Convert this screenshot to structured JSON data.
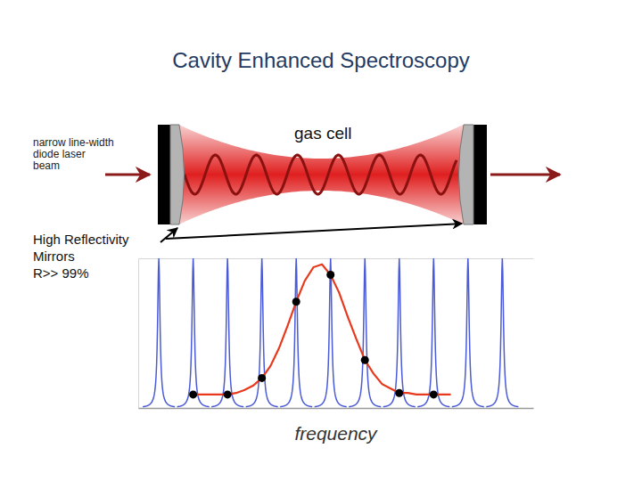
{
  "title": "Cavity Enhanced Spectroscopy",
  "laser_label": [
    "narrow line-width",
    "diode laser",
    "beam"
  ],
  "cell_label": "gas cell",
  "mirror_label": [
    "High Reflectivity",
    "Mirrors",
    "R>> 99%"
  ],
  "chart_data": {
    "type": "line",
    "x_label": "frequency",
    "xlim": [
      0.4,
      11.9
    ],
    "ylim": [
      0,
      1
    ],
    "tick_labels": false,
    "series": [
      {
        "type": "peak",
        "color": "#4b5bd8",
        "x": [
          1,
          2,
          3,
          4,
          5,
          6,
          7,
          8,
          9,
          10,
          11
        ],
        "values": [
          1,
          1,
          1,
          1,
          1,
          1,
          1,
          1,
          1,
          1,
          1
        ]
      },
      {
        "type": "line",
        "color": "#e8391d",
        "x": [
          2,
          2.25,
          2.5,
          2.75,
          3,
          3.25,
          3.5,
          3.75,
          4,
          4.25,
          4.5,
          4.75,
          5,
          5.25,
          5.5,
          5.75,
          6,
          6.25,
          6.5,
          6.75,
          7,
          7.25,
          7.5,
          7.75,
          8,
          8.25,
          8.5,
          8.75,
          9,
          9.25,
          9.5
        ],
        "values": [
          0.09,
          0.09,
          0.09,
          0.09,
          0.09,
          0.1,
          0.12,
          0.15,
          0.2,
          0.28,
          0.4,
          0.55,
          0.71,
          0.85,
          0.94,
          0.96,
          0.89,
          0.77,
          0.61,
          0.46,
          0.32,
          0.23,
          0.16,
          0.13,
          0.1,
          0.1,
          0.09,
          0.09,
          0.09,
          0.09,
          0.09
        ]
      },
      {
        "type": "scatter",
        "color": "#000000",
        "marker": "circle",
        "x": [
          2,
          3,
          4,
          5,
          6,
          7,
          8,
          9
        ],
        "values": [
          0.09,
          0.09,
          0.2,
          0.71,
          0.89,
          0.32,
          0.1,
          0.09
        ]
      }
    ]
  }
}
